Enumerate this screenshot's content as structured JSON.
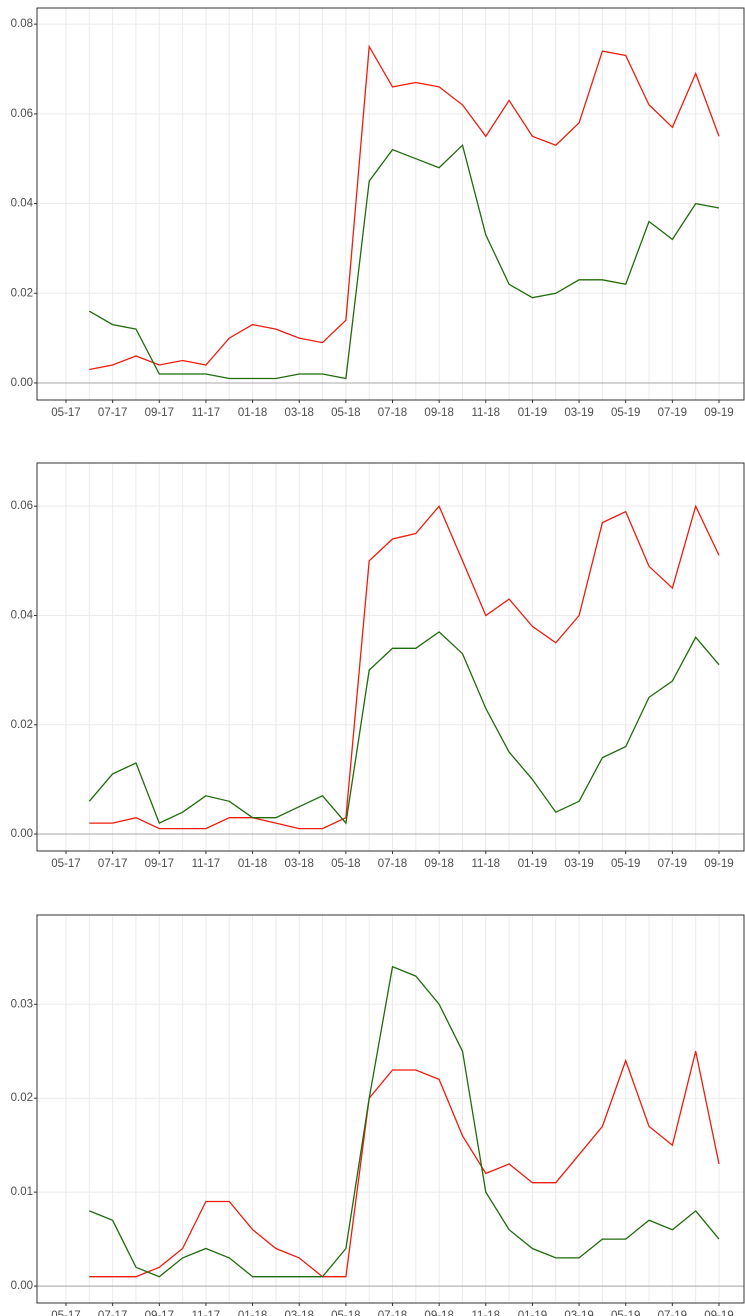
{
  "chart_data": [
    {
      "type": "line",
      "categories": [
        "05-17",
        null,
        "07-17",
        null,
        "09-17",
        null,
        "11-17",
        null,
        "01-18",
        null,
        "03-18",
        null,
        "05-18",
        null,
        "07-18",
        null,
        "09-18",
        null,
        "11-18",
        null,
        "01-19",
        null,
        "03-19",
        null,
        "05-19",
        null,
        "07-19",
        null,
        "09-19"
      ],
      "ylim": [
        -0.0038,
        0.0836
      ],
      "yticks": [
        {
          "value": 0,
          "label": "0.00"
        },
        {
          "value": 0.02,
          "label": "0.02"
        },
        {
          "value": 0.04,
          "label": "0.04"
        },
        {
          "value": 0.06,
          "label": "0.06"
        },
        {
          "value": 0.08,
          "label": "0.08"
        }
      ],
      "grid": true,
      "series": [
        {
          "color": "#ee1c0e",
          "values": [
            null,
            0.003,
            0.004,
            0.006,
            0.004,
            0.005,
            0.004,
            0.01,
            0.013,
            0.012,
            0.01,
            0.009,
            0.014,
            0.075,
            0.066,
            0.067,
            0.066,
            0.062,
            0.055,
            0.063,
            0.055,
            0.053,
            0.058,
            0.074,
            0.073,
            0.062,
            0.057,
            0.069,
            0.055
          ]
        },
        {
          "color": "#1f6b0b",
          "values": [
            null,
            0.016,
            0.013,
            0.012,
            0.002,
            0.002,
            0.002,
            0.001,
            0.001,
            0.001,
            0.002,
            0.002,
            0.001,
            0.045,
            0.052,
            0.05,
            0.048,
            0.053,
            0.033,
            0.022,
            0.019,
            0.02,
            0.023,
            0.023,
            0.022,
            0.036,
            0.032,
            0.04,
            0.039
          ]
        }
      ]
    },
    {
      "type": "line",
      "categories": [
        "05-17",
        null,
        "07-17",
        null,
        "09-17",
        null,
        "11-17",
        null,
        "01-18",
        null,
        "03-18",
        null,
        "05-18",
        null,
        "07-18",
        null,
        "09-18",
        null,
        "11-18",
        null,
        "01-19",
        null,
        "03-19",
        null,
        "05-19",
        null,
        "07-19",
        null,
        "09-19"
      ],
      "ylim": [
        -0.0031,
        0.0679
      ],
      "yticks": [
        {
          "value": 0,
          "label": "0.00"
        },
        {
          "value": 0.02,
          "label": "0.02"
        },
        {
          "value": 0.04,
          "label": "0.04"
        },
        {
          "value": 0.06,
          "label": "0.06"
        }
      ],
      "grid": true,
      "series": [
        {
          "color": "#ee1c0e",
          "values": [
            null,
            0.002,
            0.002,
            0.003,
            0.001,
            0.001,
            0.001,
            0.003,
            0.003,
            0.002,
            0.001,
            0.001,
            0.003,
            0.05,
            0.054,
            0.055,
            0.06,
            0.05,
            0.04,
            0.043,
            0.038,
            0.035,
            0.04,
            0.057,
            0.059,
            0.049,
            0.045,
            0.06,
            0.051
          ]
        },
        {
          "color": "#1f6b0b",
          "values": [
            null,
            0.006,
            0.011,
            0.013,
            0.002,
            0.004,
            0.007,
            0.006,
            0.003,
            0.003,
            0.005,
            0.007,
            0.002,
            0.03,
            0.034,
            0.034,
            0.037,
            0.033,
            0.023,
            0.015,
            0.01,
            0.004,
            0.006,
            0.014,
            0.016,
            0.025,
            0.028,
            0.036,
            0.031
          ]
        }
      ]
    },
    {
      "type": "line",
      "categories": [
        "05-17",
        null,
        "07-17",
        null,
        "09-17",
        null,
        "11-17",
        null,
        "01-18",
        null,
        "03-18",
        null,
        "05-18",
        null,
        "07-18",
        null,
        "09-18",
        null,
        "11-18",
        null,
        "01-19",
        null,
        "03-19",
        null,
        "05-19",
        null,
        "07-19",
        null,
        "09-19"
      ],
      "ylim": [
        -0.0018,
        0.0395
      ],
      "yticks": [
        {
          "value": 0,
          "label": "0.00"
        },
        {
          "value": 0.01,
          "label": "0.01"
        },
        {
          "value": 0.02,
          "label": "0.02"
        },
        {
          "value": 0.03,
          "label": "0.03"
        }
      ],
      "grid": true,
      "series": [
        {
          "color": "#ee1c0e",
          "values": [
            null,
            0.001,
            0.001,
            0.001,
            0.002,
            0.004,
            0.009,
            0.009,
            0.006,
            0.004,
            0.003,
            0.001,
            0.001,
            0.02,
            0.023,
            0.023,
            0.022,
            0.016,
            0.012,
            0.013,
            0.011,
            0.011,
            0.014,
            0.017,
            0.024,
            0.017,
            0.015,
            0.025,
            0.013
          ]
        },
        {
          "color": "#1f6b0b",
          "values": [
            null,
            0.008,
            0.007,
            0.002,
            0.001,
            0.003,
            0.004,
            0.003,
            0.001,
            0.001,
            0.001,
            0.001,
            0.004,
            0.02,
            0.034,
            0.033,
            0.03,
            0.025,
            0.01,
            0.006,
            0.004,
            0.003,
            0.003,
            0.005,
            0.005,
            0.007,
            0.006,
            0.008,
            0.005
          ]
        }
      ]
    }
  ]
}
